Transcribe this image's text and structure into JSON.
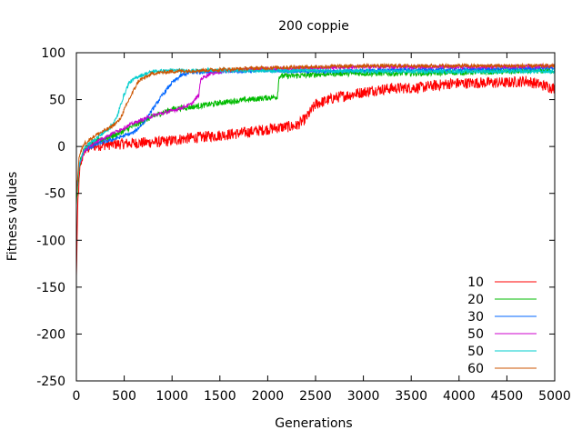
{
  "chart_data": {
    "type": "line",
    "title": "200 coppie",
    "xlabel": "Generations",
    "ylabel": "Fitness values",
    "xlim": [
      0,
      5000
    ],
    "ylim": [
      -250,
      100
    ],
    "x_ticks": [
      0,
      500,
      1000,
      1500,
      2000,
      2500,
      3000,
      3500,
      4000,
      4500,
      5000
    ],
    "y_ticks": [
      -250,
      -200,
      -150,
      -100,
      -50,
      0,
      50,
      100
    ],
    "x_tick_labels": [
      "0",
      "500",
      "1000",
      "1500",
      "2000",
      "2500",
      "3000",
      "3500",
      "4000",
      "4500",
      "5000"
    ],
    "y_tick_labels": [
      "-250",
      "-200",
      "-150",
      "-100",
      "-50",
      "0",
      "50",
      "100"
    ],
    "grid": false,
    "legend_position": "bottom-right",
    "series": [
      {
        "name": "10",
        "color": "#ff0000",
        "noise": 6,
        "points": [
          [
            0,
            -140
          ],
          [
            15,
            -60
          ],
          [
            40,
            -20
          ],
          [
            80,
            -5
          ],
          [
            150,
            0
          ],
          [
            300,
            2
          ],
          [
            500,
            3
          ],
          [
            700,
            4
          ],
          [
            900,
            5
          ],
          [
            1100,
            8
          ],
          [
            1300,
            10
          ],
          [
            1500,
            12
          ],
          [
            1700,
            14
          ],
          [
            1900,
            17
          ],
          [
            2100,
            20
          ],
          [
            2300,
            22
          ],
          [
            2400,
            30
          ],
          [
            2500,
            45
          ],
          [
            2700,
            52
          ],
          [
            2900,
            56
          ],
          [
            3100,
            60
          ],
          [
            3300,
            62
          ],
          [
            3600,
            63
          ],
          [
            3900,
            67
          ],
          [
            4200,
            68
          ],
          [
            4500,
            68
          ],
          [
            4700,
            70
          ],
          [
            4850,
            66
          ],
          [
            5000,
            62
          ]
        ]
      },
      {
        "name": "20",
        "color": "#00bb00",
        "noise": 3,
        "points": [
          [
            0,
            -60
          ],
          [
            30,
            -20
          ],
          [
            80,
            -2
          ],
          [
            200,
            5
          ],
          [
            400,
            12
          ],
          [
            600,
            22
          ],
          [
            800,
            32
          ],
          [
            1000,
            40
          ],
          [
            1200,
            42
          ],
          [
            1400,
            45
          ],
          [
            1600,
            48
          ],
          [
            1800,
            50
          ],
          [
            2000,
            52
          ],
          [
            2100,
            53
          ],
          [
            2120,
            75
          ],
          [
            2400,
            76
          ],
          [
            2700,
            78
          ],
          [
            3000,
            78
          ],
          [
            3500,
            78
          ],
          [
            4000,
            79
          ],
          [
            4500,
            80
          ],
          [
            5000,
            81
          ]
        ]
      },
      {
        "name": "30",
        "color": "#0066ff",
        "noise": 2,
        "points": [
          [
            0,
            -50
          ],
          [
            30,
            -20
          ],
          [
            80,
            -5
          ],
          [
            200,
            2
          ],
          [
            400,
            8
          ],
          [
            600,
            15
          ],
          [
            700,
            25
          ],
          [
            800,
            40
          ],
          [
            900,
            55
          ],
          [
            1000,
            68
          ],
          [
            1100,
            76
          ],
          [
            1200,
            79
          ],
          [
            1400,
            80
          ],
          [
            1600,
            80
          ],
          [
            2000,
            81
          ],
          [
            2500,
            80
          ],
          [
            3000,
            81
          ],
          [
            3500,
            82
          ],
          [
            4000,
            82
          ],
          [
            4500,
            83
          ],
          [
            5000,
            84
          ]
        ]
      },
      {
        "name": "50",
        "color": "#cc00cc",
        "noise": 2,
        "points": [
          [
            0,
            -50
          ],
          [
            30,
            -20
          ],
          [
            80,
            -5
          ],
          [
            200,
            5
          ],
          [
            400,
            15
          ],
          [
            600,
            25
          ],
          [
            800,
            33
          ],
          [
            1000,
            38
          ],
          [
            1200,
            45
          ],
          [
            1280,
            55
          ],
          [
            1300,
            72
          ],
          [
            1400,
            78
          ],
          [
            1600,
            81
          ],
          [
            2000,
            83
          ],
          [
            2500,
            84
          ],
          [
            3000,
            85
          ],
          [
            3500,
            85
          ],
          [
            4000,
            85
          ],
          [
            4500,
            85
          ],
          [
            5000,
            86
          ]
        ]
      },
      {
        "name": "50",
        "color": "#00cccc",
        "noise": 2,
        "points": [
          [
            0,
            -50
          ],
          [
            30,
            -20
          ],
          [
            80,
            -2
          ],
          [
            200,
            8
          ],
          [
            350,
            20
          ],
          [
            420,
            30
          ],
          [
            480,
            50
          ],
          [
            550,
            68
          ],
          [
            650,
            75
          ],
          [
            800,
            80
          ],
          [
            1000,
            81
          ],
          [
            1500,
            81
          ],
          [
            2000,
            81
          ],
          [
            2500,
            81
          ],
          [
            3000,
            80
          ],
          [
            3500,
            80
          ],
          [
            4000,
            80
          ],
          [
            4500,
            80
          ],
          [
            5000,
            80
          ]
        ]
      },
      {
        "name": "60",
        "color": "#cc5500",
        "noise": 2,
        "points": [
          [
            0,
            -50
          ],
          [
            30,
            -10
          ],
          [
            80,
            3
          ],
          [
            200,
            12
          ],
          [
            350,
            20
          ],
          [
            450,
            28
          ],
          [
            550,
            50
          ],
          [
            650,
            70
          ],
          [
            800,
            78
          ],
          [
            1000,
            80
          ],
          [
            1500,
            82
          ],
          [
            2000,
            84
          ],
          [
            2500,
            85
          ],
          [
            3000,
            86
          ],
          [
            3500,
            86
          ],
          [
            4000,
            86
          ],
          [
            4500,
            86
          ],
          [
            5000,
            86
          ]
        ]
      }
    ]
  }
}
